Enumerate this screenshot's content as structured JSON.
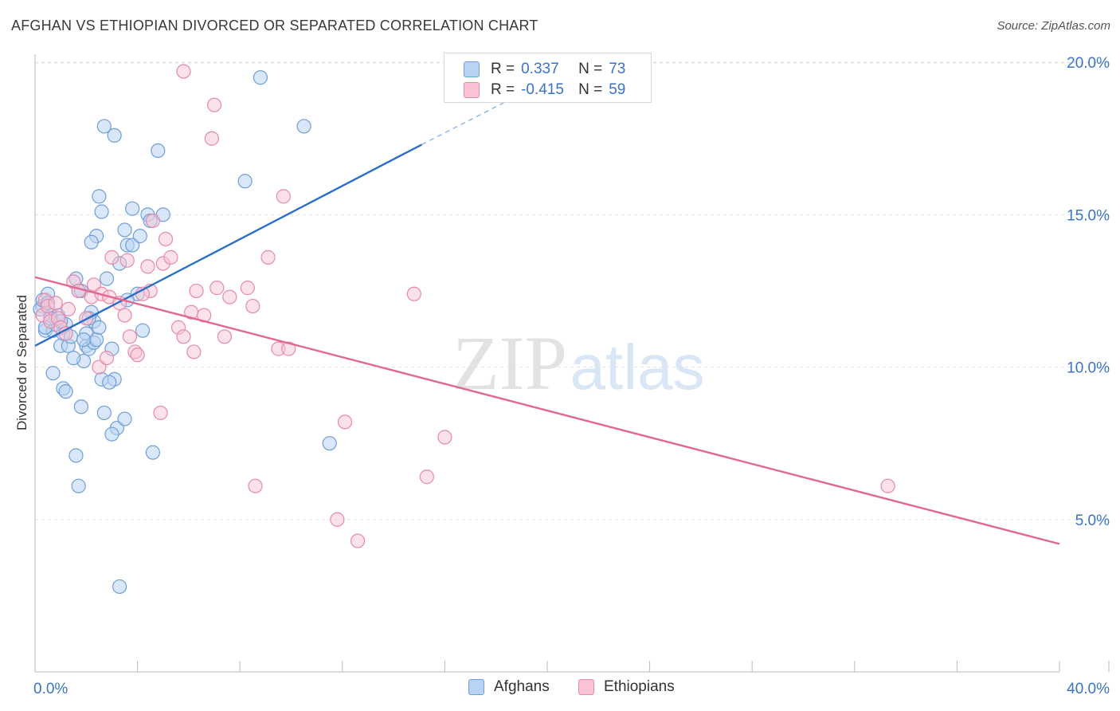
{
  "header": {
    "title": "AFGHAN VS ETHIOPIAN DIVORCED OR SEPARATED CORRELATION CHART",
    "source": "Source: ZipAtlas.com"
  },
  "legend": {
    "series1": {
      "r_label": "R =",
      "r_value": "0.337",
      "n_label": "N =",
      "n_value": "73"
    },
    "series2": {
      "r_label": "R =",
      "r_value": "-0.415",
      "n_label": "N =",
      "n_value": "59"
    }
  },
  "bottom_legend": {
    "afghans": "Afghans",
    "ethiopians": "Ethiopians"
  },
  "watermark": {
    "zip": "ZIP",
    "atlas": "atlas"
  },
  "colors": {
    "blue_fill": "#b9d4f3",
    "blue_stroke": "#6f9fd8",
    "blue_line": "#2b6fcc",
    "pink_fill": "#f8c3d4",
    "pink_stroke": "#e58aa8",
    "pink_line": "#e06892",
    "tick_label": "#3b73c6",
    "grid": "#e3e3e3"
  },
  "chart_data": {
    "type": "scatter",
    "title": "AFGHAN VS ETHIOPIAN DIVORCED OR SEPARATED CORRELATION CHART",
    "xlabel": "",
    "ylabel": "Divorced or Separated",
    "xlim": [
      0,
      40
    ],
    "ylim": [
      0,
      20.5
    ],
    "x_tick_labels": [
      "0.0%",
      "40.0%"
    ],
    "y_ticks": [
      5,
      10,
      15,
      20
    ],
    "y_tick_labels": [
      "5.0%",
      "10.0%",
      "15.0%",
      "20.0%"
    ],
    "grid": true,
    "legend_position": "top-center",
    "series": [
      {
        "name": "Afghans",
        "r": 0.337,
        "n": 73,
        "trend": {
          "x0": 0,
          "y0": 10.7,
          "x1": 15.1,
          "y1": 17.3,
          "dashed_x1": 19.3,
          "dashed_y1": 19.1
        },
        "points": [
          [
            0.3,
            12.0
          ],
          [
            0.4,
            11.2
          ],
          [
            0.5,
            12.4
          ],
          [
            0.6,
            11.7
          ],
          [
            0.7,
            11.2
          ],
          [
            0.8,
            11.4
          ],
          [
            0.9,
            11.7
          ],
          [
            1.0,
            10.7
          ],
          [
            1.1,
            11.1
          ],
          [
            1.2,
            11.4
          ],
          [
            1.3,
            10.7
          ],
          [
            1.4,
            11.0
          ],
          [
            0.7,
            9.8
          ],
          [
            1.1,
            9.3
          ],
          [
            1.2,
            9.2
          ],
          [
            1.7,
            12.5
          ],
          [
            1.9,
            10.2
          ],
          [
            2.0,
            10.7
          ],
          [
            2.0,
            11.1
          ],
          [
            2.1,
            10.6
          ],
          [
            2.3,
            11.5
          ],
          [
            2.3,
            10.8
          ],
          [
            2.4,
            10.9
          ],
          [
            2.5,
            11.3
          ],
          [
            2.6,
            9.6
          ],
          [
            1.6,
            12.9
          ],
          [
            1.8,
            12.5
          ],
          [
            2.2,
            11.8
          ],
          [
            2.8,
            12.9
          ],
          [
            3.0,
            10.6
          ],
          [
            3.1,
            9.6
          ],
          [
            3.2,
            8.0
          ],
          [
            3.5,
            8.3
          ],
          [
            2.7,
            8.5
          ],
          [
            3.0,
            7.8
          ],
          [
            1.8,
            8.7
          ],
          [
            1.6,
            7.1
          ],
          [
            1.7,
            6.1
          ],
          [
            3.3,
            13.4
          ],
          [
            3.5,
            14.5
          ],
          [
            3.6,
            14.0
          ],
          [
            3.8,
            14.0
          ],
          [
            4.1,
            14.3
          ],
          [
            3.8,
            15.2
          ],
          [
            4.4,
            15.0
          ],
          [
            5.0,
            15.0
          ],
          [
            4.8,
            17.1
          ],
          [
            2.4,
            14.3
          ],
          [
            2.2,
            14.1
          ],
          [
            2.5,
            15.6
          ],
          [
            2.6,
            15.1
          ],
          [
            2.7,
            17.9
          ],
          [
            3.1,
            17.6
          ],
          [
            4.0,
            12.4
          ],
          [
            3.6,
            12.2
          ],
          [
            4.2,
            11.2
          ],
          [
            4.6,
            7.2
          ],
          [
            8.2,
            16.1
          ],
          [
            8.8,
            19.5
          ],
          [
            10.5,
            17.9
          ],
          [
            11.5,
            7.5
          ],
          [
            3.3,
            2.8
          ],
          [
            0.2,
            11.9
          ],
          [
            0.4,
            11.3
          ],
          [
            0.6,
            11.6
          ],
          [
            1.5,
            10.3
          ],
          [
            1.9,
            10.9
          ],
          [
            2.9,
            9.5
          ],
          [
            0.3,
            12.2
          ],
          [
            0.5,
            12.1
          ],
          [
            1.0,
            11.5
          ],
          [
            2.1,
            11.6
          ],
          [
            4.5,
            14.8
          ]
        ]
      },
      {
        "name": "Ethiopians",
        "r": -0.415,
        "n": 59,
        "trend": {
          "x0": 0,
          "y0": 12.95,
          "x1": 40,
          "y1": 4.2
        },
        "points": [
          [
            0.3,
            11.7
          ],
          [
            0.4,
            12.2
          ],
          [
            0.5,
            12.0
          ],
          [
            0.6,
            11.5
          ],
          [
            0.8,
            12.1
          ],
          [
            0.9,
            11.6
          ],
          [
            1.0,
            11.3
          ],
          [
            1.2,
            11.1
          ],
          [
            1.5,
            12.8
          ],
          [
            1.7,
            12.5
          ],
          [
            2.0,
            11.6
          ],
          [
            2.2,
            12.3
          ],
          [
            2.3,
            12.7
          ],
          [
            2.6,
            12.4
          ],
          [
            2.9,
            12.3
          ],
          [
            3.0,
            13.6
          ],
          [
            3.3,
            12.1
          ],
          [
            3.6,
            13.5
          ],
          [
            3.5,
            11.7
          ],
          [
            3.7,
            11.0
          ],
          [
            3.9,
            10.5
          ],
          [
            4.0,
            10.4
          ],
          [
            4.5,
            12.5
          ],
          [
            4.4,
            13.3
          ],
          [
            4.6,
            14.8
          ],
          [
            5.1,
            14.2
          ],
          [
            5.0,
            13.4
          ],
          [
            5.6,
            11.3
          ],
          [
            5.8,
            11.0
          ],
          [
            6.1,
            11.8
          ],
          [
            6.3,
            12.5
          ],
          [
            6.6,
            11.7
          ],
          [
            6.2,
            10.5
          ],
          [
            7.1,
            12.6
          ],
          [
            7.6,
            12.3
          ],
          [
            7.4,
            11.0
          ],
          [
            8.3,
            12.6
          ],
          [
            8.5,
            12.0
          ],
          [
            9.1,
            13.6
          ],
          [
            9.5,
            10.6
          ],
          [
            9.7,
            15.6
          ],
          [
            9.9,
            10.6
          ],
          [
            6.9,
            17.5
          ],
          [
            7.0,
            18.6
          ],
          [
            5.8,
            19.7
          ],
          [
            4.9,
            8.5
          ],
          [
            8.6,
            6.1
          ],
          [
            11.8,
            5.0
          ],
          [
            12.1,
            8.2
          ],
          [
            12.6,
            4.3
          ],
          [
            14.8,
            12.4
          ],
          [
            15.3,
            6.4
          ],
          [
            16.0,
            7.7
          ],
          [
            33.3,
            6.1
          ],
          [
            2.5,
            10.0
          ],
          [
            1.3,
            11.9
          ],
          [
            2.8,
            10.3
          ],
          [
            5.3,
            13.6
          ],
          [
            4.2,
            12.4
          ]
        ]
      }
    ]
  }
}
